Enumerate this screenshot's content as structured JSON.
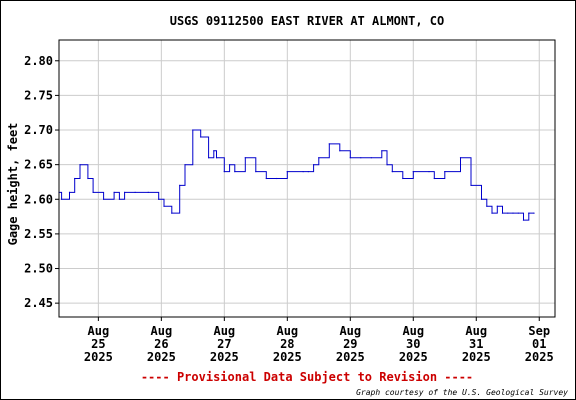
{
  "chart_data": {
    "type": "line",
    "title": "USGS 09112500 EAST RIVER AT ALMONT, CO",
    "ylabel": "Gage height, feet",
    "xlabel": "",
    "ylim": [
      2.43,
      2.83
    ],
    "yticks": [
      2.45,
      2.5,
      2.55,
      2.6,
      2.65,
      2.7,
      2.75,
      2.8
    ],
    "xlim": [
      "2025-08-24 09:00",
      "2025-09-01 06:00"
    ],
    "xticks": [
      {
        "lines": [
          "Aug",
          "25",
          "2025"
        ]
      },
      {
        "lines": [
          "Aug",
          "26",
          "2025"
        ]
      },
      {
        "lines": [
          "Aug",
          "27",
          "2025"
        ]
      },
      {
        "lines": [
          "Aug",
          "28",
          "2025"
        ]
      },
      {
        "lines": [
          "Aug",
          "29",
          "2025"
        ]
      },
      {
        "lines": [
          "Aug",
          "30",
          "2025"
        ]
      },
      {
        "lines": [
          "Aug",
          "31",
          "2025"
        ]
      },
      {
        "lines": [
          "Sep",
          "01",
          "2025"
        ]
      }
    ],
    "grid": true,
    "series_color": "#0000cc",
    "series": [
      {
        "name": "",
        "x": [
          "2025-08-24 09:00",
          "2025-08-24 10:00",
          "2025-08-24 13:00",
          "2025-08-24 15:00",
          "2025-08-24 17:00",
          "2025-08-24 20:00",
          "2025-08-24 22:00",
          "2025-08-25 02:00",
          "2025-08-25 06:00",
          "2025-08-25 08:00",
          "2025-08-25 10:00",
          "2025-08-25 14:00",
          "2025-08-25 19:00",
          "2025-08-25 23:00",
          "2025-08-26 01:00",
          "2025-08-26 04:00",
          "2025-08-26 07:00",
          "2025-08-26 09:00",
          "2025-08-26 12:00",
          "2025-08-26 15:00",
          "2025-08-26 18:00",
          "2025-08-26 20:00",
          "2025-08-26 21:00",
          "2025-08-27 00:00",
          "2025-08-27 02:00",
          "2025-08-27 04:00",
          "2025-08-27 08:00",
          "2025-08-27 12:00",
          "2025-08-27 16:00",
          "2025-08-27 20:00",
          "2025-08-28 00:00",
          "2025-08-28 06:00",
          "2025-08-28 08:00",
          "2025-08-28 10:00",
          "2025-08-28 12:00",
          "2025-08-28 16:00",
          "2025-08-28 20:00",
          "2025-08-29 00:00",
          "2025-08-29 04:00",
          "2025-08-29 08:00",
          "2025-08-29 12:00",
          "2025-08-29 14:00",
          "2025-08-29 16:00",
          "2025-08-29 20:00",
          "2025-08-30 00:00",
          "2025-08-30 06:00",
          "2025-08-30 08:00",
          "2025-08-30 12:00",
          "2025-08-30 18:00",
          "2025-08-30 22:00",
          "2025-08-31 02:00",
          "2025-08-31 04:00",
          "2025-08-31 06:00",
          "2025-08-31 08:00",
          "2025-08-31 10:00",
          "2025-08-31 12:00",
          "2025-08-31 14:00",
          "2025-08-31 16:00",
          "2025-08-31 18:00",
          "2025-08-31 20:00",
          "2025-08-31 22:00"
        ],
        "y": [
          2.61,
          2.6,
          2.61,
          2.63,
          2.65,
          2.63,
          2.61,
          2.6,
          2.61,
          2.6,
          2.61,
          2.61,
          2.61,
          2.6,
          2.59,
          2.58,
          2.62,
          2.65,
          2.7,
          2.69,
          2.66,
          2.67,
          2.66,
          2.64,
          2.65,
          2.64,
          2.66,
          2.64,
          2.63,
          2.63,
          2.64,
          2.64,
          2.64,
          2.65,
          2.66,
          2.68,
          2.67,
          2.66,
          2.66,
          2.66,
          2.67,
          2.65,
          2.64,
          2.63,
          2.64,
          2.64,
          2.63,
          2.64,
          2.66,
          2.62,
          2.6,
          2.59,
          2.58,
          2.59,
          2.58,
          2.58,
          2.58,
          2.58,
          2.57,
          2.58,
          2.58
        ]
      }
    ],
    "caption": "---- Provisional Data Subject to Revision ----",
    "caption_color": "#cc0000",
    "credit": "Graph courtesy of the U.S. Geological Survey"
  }
}
